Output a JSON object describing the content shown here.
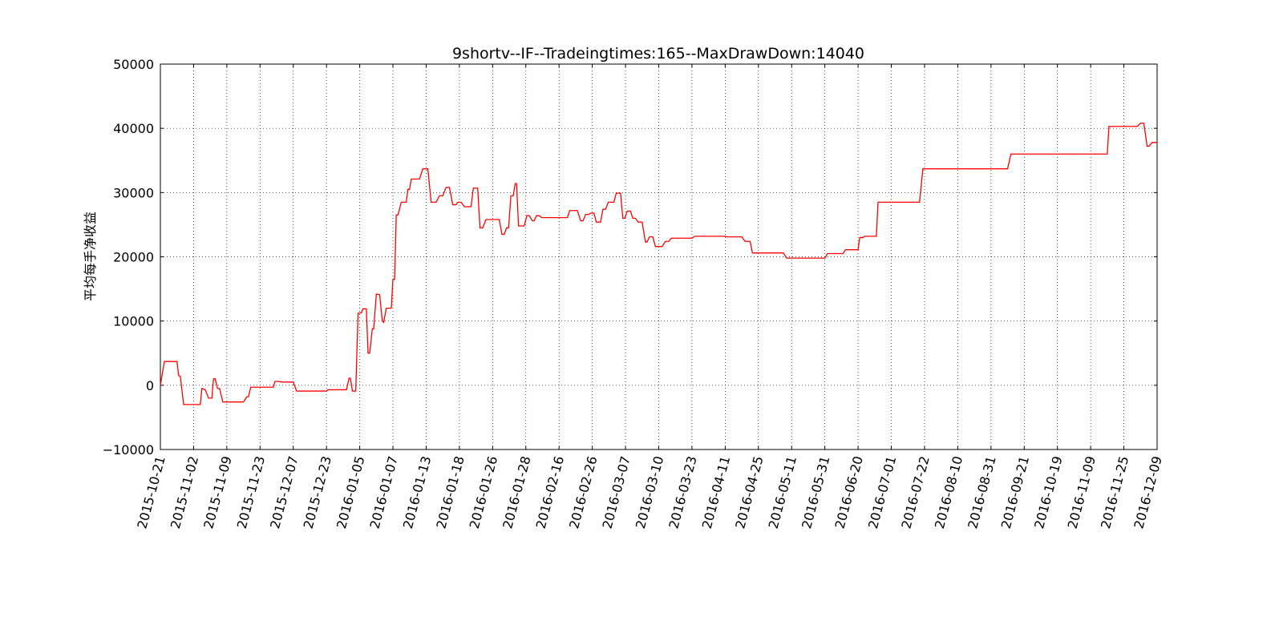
{
  "chart_data": {
    "type": "line",
    "title": "9shortv--IF--Tradeingtimes:165--MaxDrawDown:14040",
    "xlabel": "",
    "ylabel": "平均每手净收益",
    "ylim": [
      -10000,
      50000
    ],
    "yticks": [
      -10000,
      0,
      10000,
      20000,
      30000,
      40000,
      50000
    ],
    "ytick_labels": [
      "−10000",
      "0",
      "10000",
      "20000",
      "30000",
      "40000",
      "50000"
    ],
    "grid": true,
    "line_color": "#ff0000",
    "categories": [
      "2015-10-21",
      "2015-11-02",
      "2015-11-09",
      "2015-11-23",
      "2015-12-07",
      "2015-12-23",
      "2016-01-05",
      "2016-01-07",
      "2016-01-13",
      "2016-01-18",
      "2016-01-26",
      "2016-01-28",
      "2016-02-16",
      "2016-02-26",
      "2016-03-07",
      "2016-03-10",
      "2016-03-23",
      "2016-04-11",
      "2016-04-25",
      "2016-05-11",
      "2016-05-31",
      "2016-06-20",
      "2016-07-01",
      "2016-07-22",
      "2016-08-10",
      "2016-08-31",
      "2016-09-21",
      "2016-10-19",
      "2016-11-09",
      "2016-11-25",
      "2016-12-09"
    ],
    "series": [
      {
        "points": [
          [
            0,
            0
          ],
          [
            0.12,
            3700
          ],
          [
            0.5,
            3700
          ],
          [
            0.55,
            1500
          ],
          [
            0.6,
            1400
          ],
          [
            0.7,
            -3000
          ],
          [
            1.2,
            -3000
          ],
          [
            1.25,
            -500
          ],
          [
            1.35,
            -700
          ],
          [
            1.45,
            -2000
          ],
          [
            1.55,
            -2000
          ],
          [
            1.6,
            1000
          ],
          [
            1.65,
            1000
          ],
          [
            1.72,
            -500
          ],
          [
            1.78,
            -500
          ],
          [
            1.88,
            -2600
          ],
          [
            2.5,
            -2600
          ],
          [
            2.6,
            -1800
          ],
          [
            2.65,
            -1800
          ],
          [
            2.72,
            -300
          ],
          [
            3.4,
            -300
          ],
          [
            3.45,
            600
          ],
          [
            3.55,
            600
          ],
          [
            3.65,
            500
          ],
          [
            4.0,
            500
          ],
          [
            4.1,
            -900
          ],
          [
            5.0,
            -900
          ],
          [
            5.05,
            -700
          ],
          [
            5.6,
            -700
          ],
          [
            5.68,
            1100
          ],
          [
            5.72,
            1100
          ],
          [
            5.78,
            -900
          ],
          [
            5.88,
            -900
          ],
          [
            5.95,
            11200
          ],
          [
            6.05,
            11300
          ],
          [
            6.1,
            11900
          ],
          [
            6.2,
            11900
          ],
          [
            6.25,
            5000
          ],
          [
            6.3,
            5000
          ],
          [
            6.38,
            8800
          ],
          [
            6.42,
            8800
          ],
          [
            6.5,
            14200
          ],
          [
            6.6,
            14100
          ],
          [
            6.68,
            10000
          ],
          [
            6.72,
            9800
          ],
          [
            6.8,
            12000
          ],
          [
            6.95,
            12000
          ],
          [
            7.0,
            16500
          ],
          [
            7.05,
            16500
          ],
          [
            7.1,
            26500
          ],
          [
            7.15,
            26500
          ],
          [
            7.25,
            28500
          ],
          [
            7.4,
            28500
          ],
          [
            7.45,
            30500
          ],
          [
            7.5,
            30500
          ],
          [
            7.55,
            32100
          ],
          [
            7.8,
            32100
          ],
          [
            7.9,
            33700
          ],
          [
            8.05,
            33700
          ],
          [
            8.15,
            28500
          ],
          [
            8.3,
            28500
          ],
          [
            8.4,
            29500
          ],
          [
            8.5,
            29500
          ],
          [
            8.6,
            30800
          ],
          [
            8.7,
            30800
          ],
          [
            8.8,
            28100
          ],
          [
            8.9,
            28100
          ],
          [
            8.95,
            28500
          ],
          [
            9.05,
            28500
          ],
          [
            9.15,
            27800
          ],
          [
            9.35,
            27800
          ],
          [
            9.42,
            30700
          ],
          [
            9.55,
            30700
          ],
          [
            9.62,
            24500
          ],
          [
            9.7,
            24500
          ],
          [
            9.8,
            25800
          ],
          [
            10.2,
            25800
          ],
          [
            10.28,
            23500
          ],
          [
            10.35,
            23500
          ],
          [
            10.42,
            24500
          ],
          [
            10.48,
            24500
          ],
          [
            10.55,
            29500
          ],
          [
            10.62,
            29500
          ],
          [
            10.68,
            31400
          ],
          [
            10.72,
            31400
          ],
          [
            10.78,
            24800
          ],
          [
            10.95,
            24800
          ],
          [
            11.03,
            26400
          ],
          [
            11.1,
            26400
          ],
          [
            11.2,
            25600
          ],
          [
            11.25,
            25600
          ],
          [
            11.32,
            26400
          ],
          [
            11.4,
            26400
          ],
          [
            11.48,
            26100
          ],
          [
            12.25,
            26100
          ],
          [
            12.32,
            27200
          ],
          [
            12.55,
            27200
          ],
          [
            12.65,
            25600
          ],
          [
            12.72,
            25600
          ],
          [
            12.8,
            26600
          ],
          [
            12.9,
            26600
          ],
          [
            12.95,
            26800
          ],
          [
            13.05,
            26800
          ],
          [
            13.12,
            25400
          ],
          [
            13.25,
            25400
          ],
          [
            13.32,
            27400
          ],
          [
            13.4,
            27400
          ],
          [
            13.48,
            28500
          ],
          [
            13.65,
            28500
          ],
          [
            13.72,
            29900
          ],
          [
            13.85,
            29900
          ],
          [
            13.92,
            26000
          ],
          [
            13.98,
            26000
          ],
          [
            14.05,
            27100
          ],
          [
            14.15,
            27100
          ],
          [
            14.22,
            26000
          ],
          [
            14.3,
            26000
          ],
          [
            14.38,
            25400
          ],
          [
            14.5,
            25400
          ],
          [
            14.6,
            22300
          ],
          [
            14.65,
            22300
          ],
          [
            14.72,
            23100
          ],
          [
            14.82,
            23100
          ],
          [
            14.9,
            21600
          ],
          [
            15.1,
            21600
          ],
          [
            15.2,
            22400
          ],
          [
            15.3,
            22400
          ],
          [
            15.38,
            22900
          ],
          [
            16.0,
            22900
          ],
          [
            16.08,
            23200
          ],
          [
            17.0,
            23200
          ],
          [
            17.05,
            23100
          ],
          [
            17.5,
            23100
          ],
          [
            17.6,
            22400
          ],
          [
            17.75,
            22400
          ],
          [
            17.82,
            20600
          ],
          [
            18.75,
            20600
          ],
          [
            18.85,
            19800
          ],
          [
            20.0,
            19800
          ],
          [
            20.08,
            20500
          ],
          [
            20.55,
            20500
          ],
          [
            20.62,
            21100
          ],
          [
            21.0,
            21100
          ],
          [
            21.05,
            23000
          ],
          [
            21.15,
            23000
          ],
          [
            21.2,
            23200
          ],
          [
            21.55,
            23200
          ],
          [
            21.6,
            28500
          ],
          [
            22.85,
            28500
          ],
          [
            22.95,
            33700
          ],
          [
            25.5,
            33700
          ],
          [
            25.6,
            36000
          ],
          [
            28.5,
            36000
          ],
          [
            28.55,
            40300
          ],
          [
            29.4,
            40300
          ],
          [
            29.5,
            40800
          ],
          [
            29.6,
            40800
          ],
          [
            29.7,
            37200
          ],
          [
            29.75,
            37200
          ],
          [
            29.85,
            37800
          ],
          [
            30,
            37800
          ]
        ]
      }
    ]
  }
}
